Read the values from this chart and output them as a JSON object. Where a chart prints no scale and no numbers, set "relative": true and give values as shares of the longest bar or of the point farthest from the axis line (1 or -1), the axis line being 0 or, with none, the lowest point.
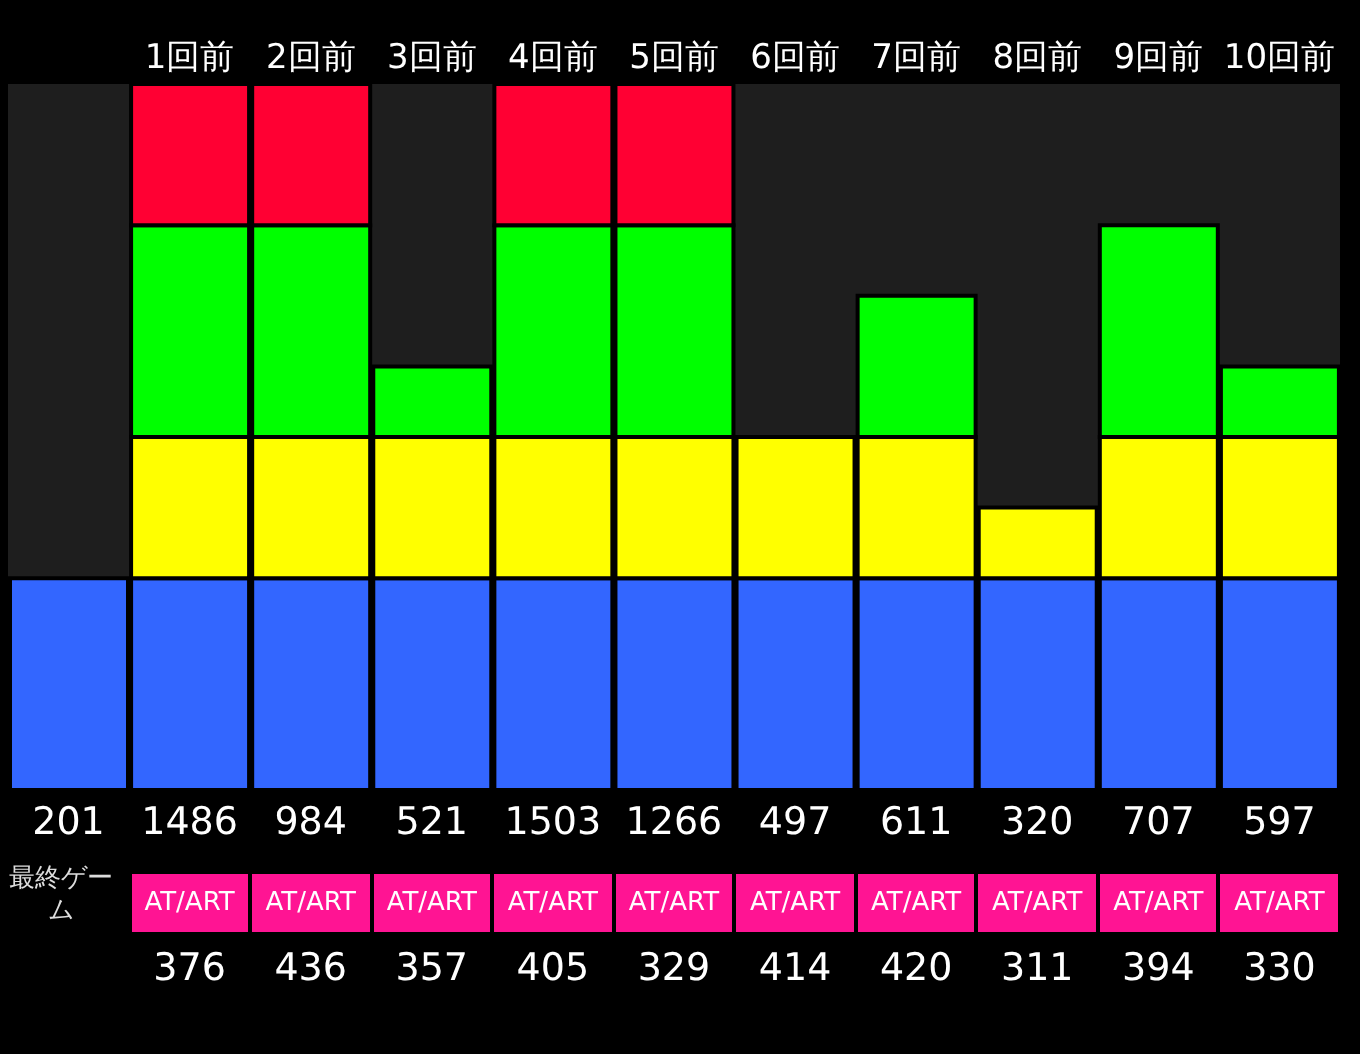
{
  "chart_data": {
    "type": "bar",
    "stacked": true,
    "relative": true,
    "legend": false,
    "categories": [
      null,
      "1回前",
      "2回前",
      "3回前",
      "4回前",
      "5回前",
      "6回前",
      "7回前",
      "8回前",
      "9回前",
      "10回前"
    ],
    "series": [
      {
        "color": "#3366ff",
        "values": [
          0.3,
          0.3,
          0.3,
          0.3,
          0.3,
          0.3,
          0.3,
          0.3,
          0.3,
          0.3,
          0.3
        ]
      },
      {
        "color": "#ffff00",
        "values": [
          0,
          0.2,
          0.2,
          0.2,
          0.2,
          0.2,
          0.2,
          0.2,
          0.1,
          0.2,
          0.2
        ]
      },
      {
        "color": "#00ff00",
        "values": [
          0,
          0.3,
          0.3,
          0.1,
          0.3,
          0.3,
          0,
          0.2,
          0,
          0.3,
          0.1
        ]
      },
      {
        "color": "#ff0033",
        "values": [
          0,
          0.2,
          0.2,
          0,
          0.2,
          0.2,
          0,
          0,
          0,
          0,
          0
        ]
      }
    ],
    "annotations": [
      "201",
      "1486",
      "984",
      "521",
      "1503",
      "1266",
      "497",
      "611",
      "320",
      "707",
      "597",
      "最終ゲーム",
      "AT/ART",
      "AT/ART",
      "AT/ART",
      "AT/ART",
      "AT/ART",
      "AT/ART",
      "AT/ART",
      "AT/ART",
      "AT/ART",
      "AT/ART",
      "376",
      "436",
      "357",
      "405",
      "329",
      "414",
      "420",
      "311",
      "394",
      "330"
    ]
  }
}
